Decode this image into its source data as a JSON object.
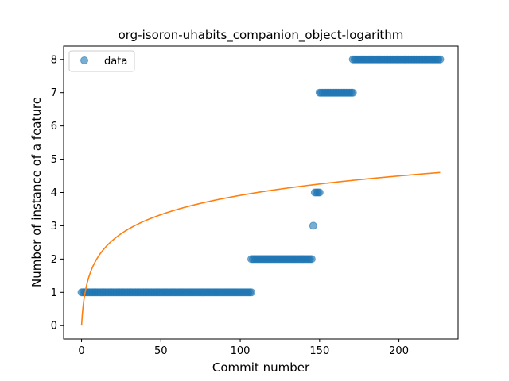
{
  "chart_data": {
    "type": "scatter",
    "title": "org-isoron-uhabits_companion_object-logarithm",
    "xlabel": "Commit number",
    "ylabel": "Number of instance of a feature",
    "xlim": [
      -11.3,
      237.3
    ],
    "ylim": [
      -0.4,
      8.4
    ],
    "xticks": [
      0,
      50,
      100,
      150,
      200
    ],
    "yticks": [
      0,
      1,
      2,
      3,
      4,
      5,
      6,
      7,
      8
    ],
    "legend": {
      "position": "top-left",
      "entries": [
        "data"
      ]
    },
    "series": [
      {
        "name": "data",
        "kind": "scatter",
        "color": "#1f77b4",
        "segments": [
          {
            "x_start": 0,
            "x_end": 107,
            "y": 1
          },
          {
            "x_start": 107,
            "x_end": 145,
            "y": 2
          },
          {
            "x_start": 146,
            "x_end": 146,
            "y": 3
          },
          {
            "x_start": 147,
            "x_end": 150,
            "y": 4
          },
          {
            "x_start": 150,
            "x_end": 171,
            "y": 7
          },
          {
            "x_start": 171,
            "x_end": 226,
            "y": 8
          }
        ]
      },
      {
        "name": "",
        "kind": "line",
        "color": "#ff7f0e",
        "model": "a*ln(1+x)",
        "a": 0.848,
        "x_range": [
          0,
          226
        ]
      }
    ]
  }
}
